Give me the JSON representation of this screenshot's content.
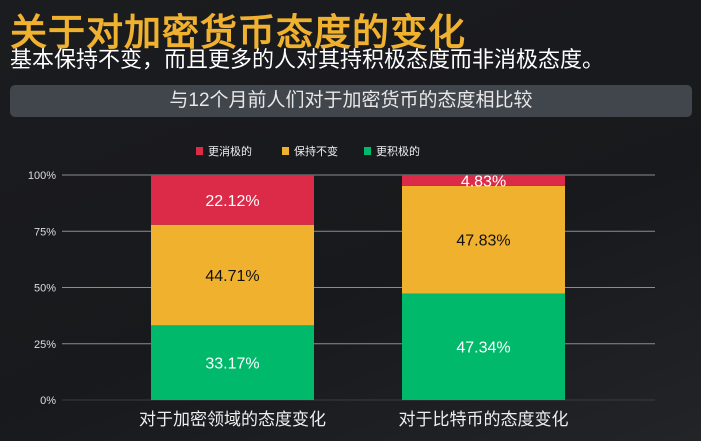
{
  "header": {
    "title": "关于对加密货币态度的变化",
    "subtitle": "基本保持不变，而且更多的人对其持积极态度而非消极态度。"
  },
  "chart_data": {
    "type": "bar",
    "stacked": true,
    "title": "与12个月前人们对于加密货币的态度相比较",
    "categories": [
      "对于加密领域的态度变化",
      "对于比特币的态度变化"
    ],
    "series": [
      {
        "name": "更积极的",
        "values": [
          33.17,
          47.34
        ],
        "labels": [
          "33.17%",
          "47.34%"
        ],
        "color": "#00b96b",
        "label_color": "#ffffff"
      },
      {
        "name": "保持不变",
        "values": [
          44.71,
          47.83
        ],
        "labels": [
          "44.71%",
          "47.83%"
        ],
        "color": "#f0b12f",
        "label_color": "#111111"
      },
      {
        "name": "更消极的",
        "values": [
          22.12,
          4.83
        ],
        "labels": [
          "22.12%",
          "4.83%"
        ],
        "color": "#dc2b49",
        "label_color": "#ffffff"
      }
    ],
    "legend_order": [
      "更消极的",
      "保持不变",
      "更积极的"
    ],
    "legend_placement": "top",
    "yticks": [
      "0%",
      "25%",
      "50%",
      "75%",
      "100%"
    ],
    "ylim": [
      0,
      100
    ],
    "grid": true
  }
}
